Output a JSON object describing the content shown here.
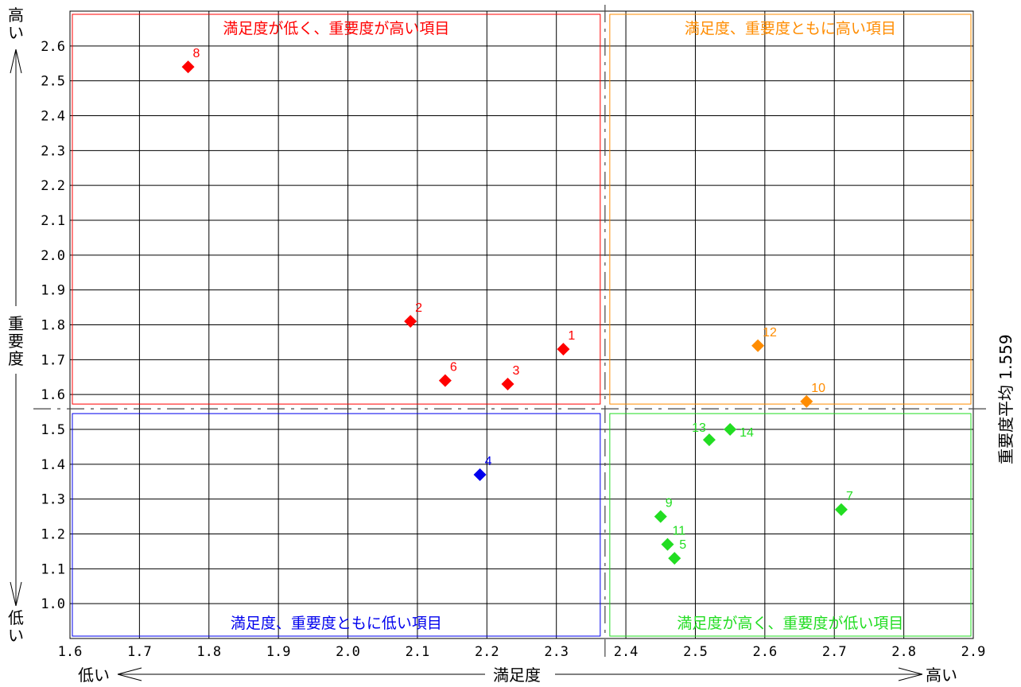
{
  "chart_data": {
    "type": "scatter",
    "title": "",
    "xlabel": "満足度",
    "ylabel": "重要度",
    "x_low_label": "低い",
    "x_high_label": "高い",
    "y_low_label": "低い",
    "y_high_label": "高い",
    "xlim": [
      1.6,
      2.9
    ],
    "ylim": [
      0.9,
      2.7
    ],
    "x_ticks": [
      "1.6",
      "1.7",
      "1.8",
      "1.9",
      "2.0",
      "2.1",
      "2.2",
      "2.3",
      "2.4",
      "2.5",
      "2.6",
      "2.7",
      "2.8",
      "2.9"
    ],
    "y_ticks": [
      "1.0",
      "1.1",
      "1.2",
      "1.3",
      "1.4",
      "1.5",
      "1.6",
      "1.7",
      "1.8",
      "1.9",
      "2.0",
      "2.1",
      "2.2",
      "2.3",
      "2.4",
      "2.5",
      "2.6"
    ],
    "grid": true,
    "x_average": 2.37,
    "y_average": 1.559,
    "avg_label": "重要度平均 1.559",
    "quadrants": {
      "top_left": {
        "label": "満足度が低く、重要度が高い項目",
        "color": "#ff0000"
      },
      "top_right": {
        "label": "満足度、重要度ともに高い項目",
        "color": "#ff8c00"
      },
      "bottom_left": {
        "label": "満足度、重要度ともに低い項目",
        "color": "#0000ee"
      },
      "bottom_right": {
        "label": "満足度が高く、重要度が低い項目",
        "color": "#22dd22"
      }
    },
    "points": [
      {
        "label": "1",
        "x": 2.31,
        "y": 1.73,
        "color": "#ff0000"
      },
      {
        "label": "2",
        "x": 2.09,
        "y": 1.81,
        "color": "#ff0000"
      },
      {
        "label": "3",
        "x": 2.23,
        "y": 1.63,
        "color": "#ff0000"
      },
      {
        "label": "4",
        "x": 2.19,
        "y": 1.37,
        "color": "#0000ee"
      },
      {
        "label": "5",
        "x": 2.47,
        "y": 1.13,
        "color": "#22dd22"
      },
      {
        "label": "6",
        "x": 2.14,
        "y": 1.64,
        "color": "#ff0000"
      },
      {
        "label": "7",
        "x": 2.71,
        "y": 1.27,
        "color": "#22dd22"
      },
      {
        "label": "8",
        "x": 1.77,
        "y": 2.54,
        "color": "#ff0000"
      },
      {
        "label": "9",
        "x": 2.45,
        "y": 1.25,
        "color": "#22dd22"
      },
      {
        "label": "10",
        "x": 2.66,
        "y": 1.58,
        "color": "#ff8c00"
      },
      {
        "label": "11",
        "x": 2.46,
        "y": 1.17,
        "color": "#22dd22"
      },
      {
        "label": "12",
        "x": 2.59,
        "y": 1.74,
        "color": "#ff8c00"
      },
      {
        "label": "13",
        "x": 2.52,
        "y": 1.47,
        "color": "#22dd22"
      },
      {
        "label": "14",
        "x": 2.55,
        "y": 1.5,
        "color": "#22dd22"
      }
    ]
  }
}
